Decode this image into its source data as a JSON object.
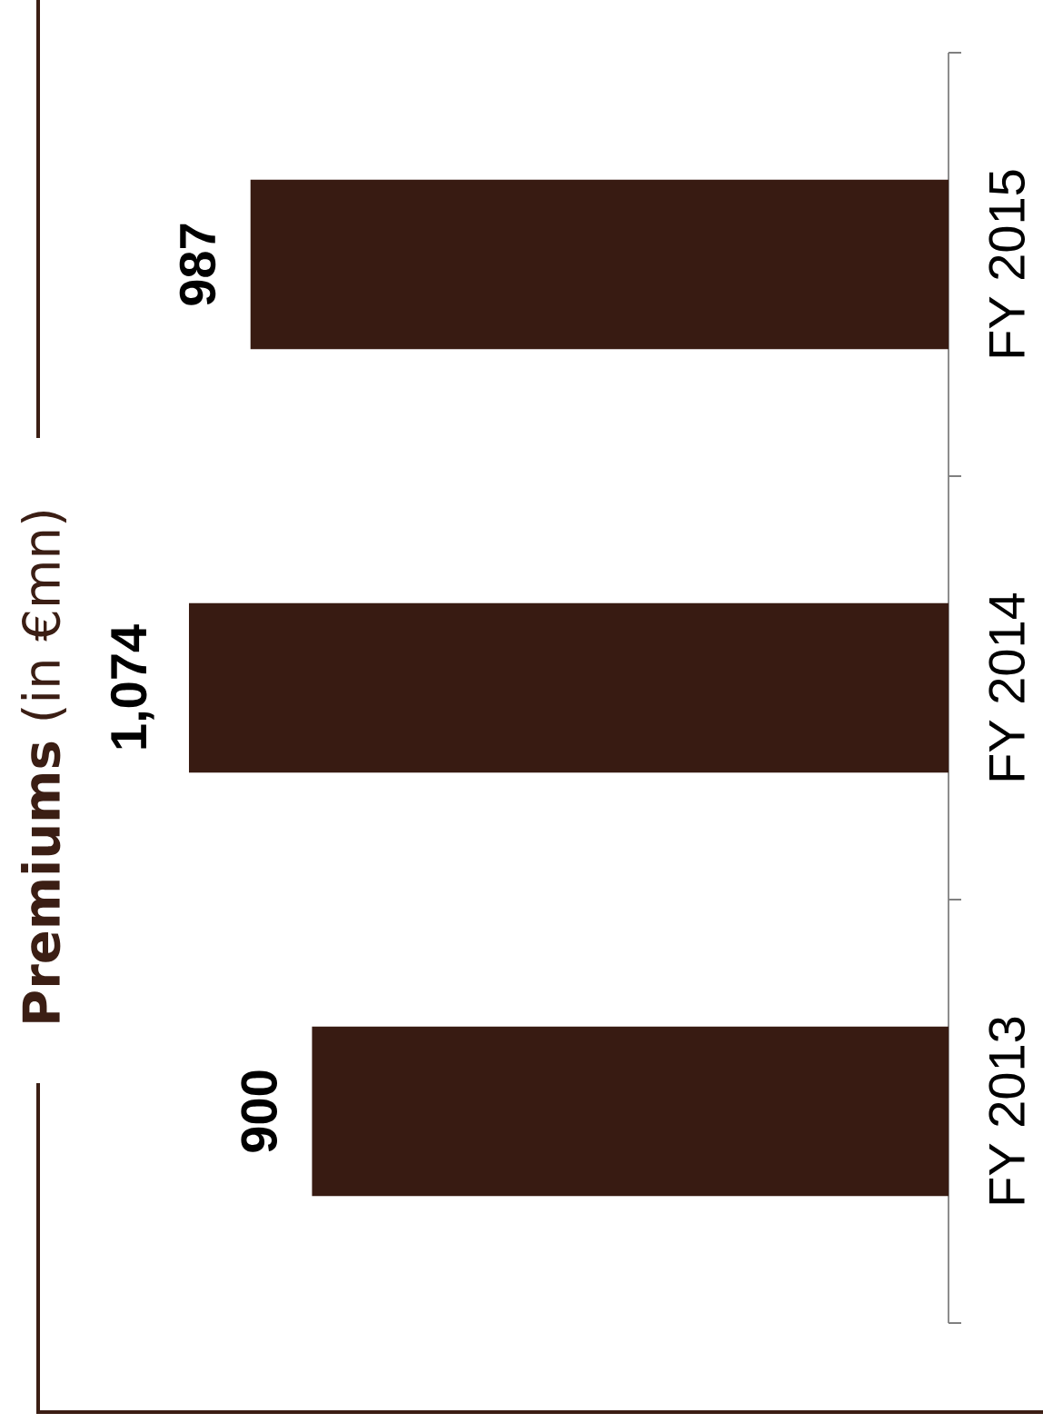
{
  "chart_data": {
    "type": "bar",
    "orientation": "horizontal",
    "title": "**Premiums** (in €mn)",
    "categories": [
      "FY 2015",
      "FY 2014",
      "FY 2013"
    ],
    "values": [
      987,
      1074,
      900
    ],
    "color": "#381b12",
    "value_labels": [
      "987",
      "1,074",
      "900"
    ],
    "tick_labels": "y"
  }
}
